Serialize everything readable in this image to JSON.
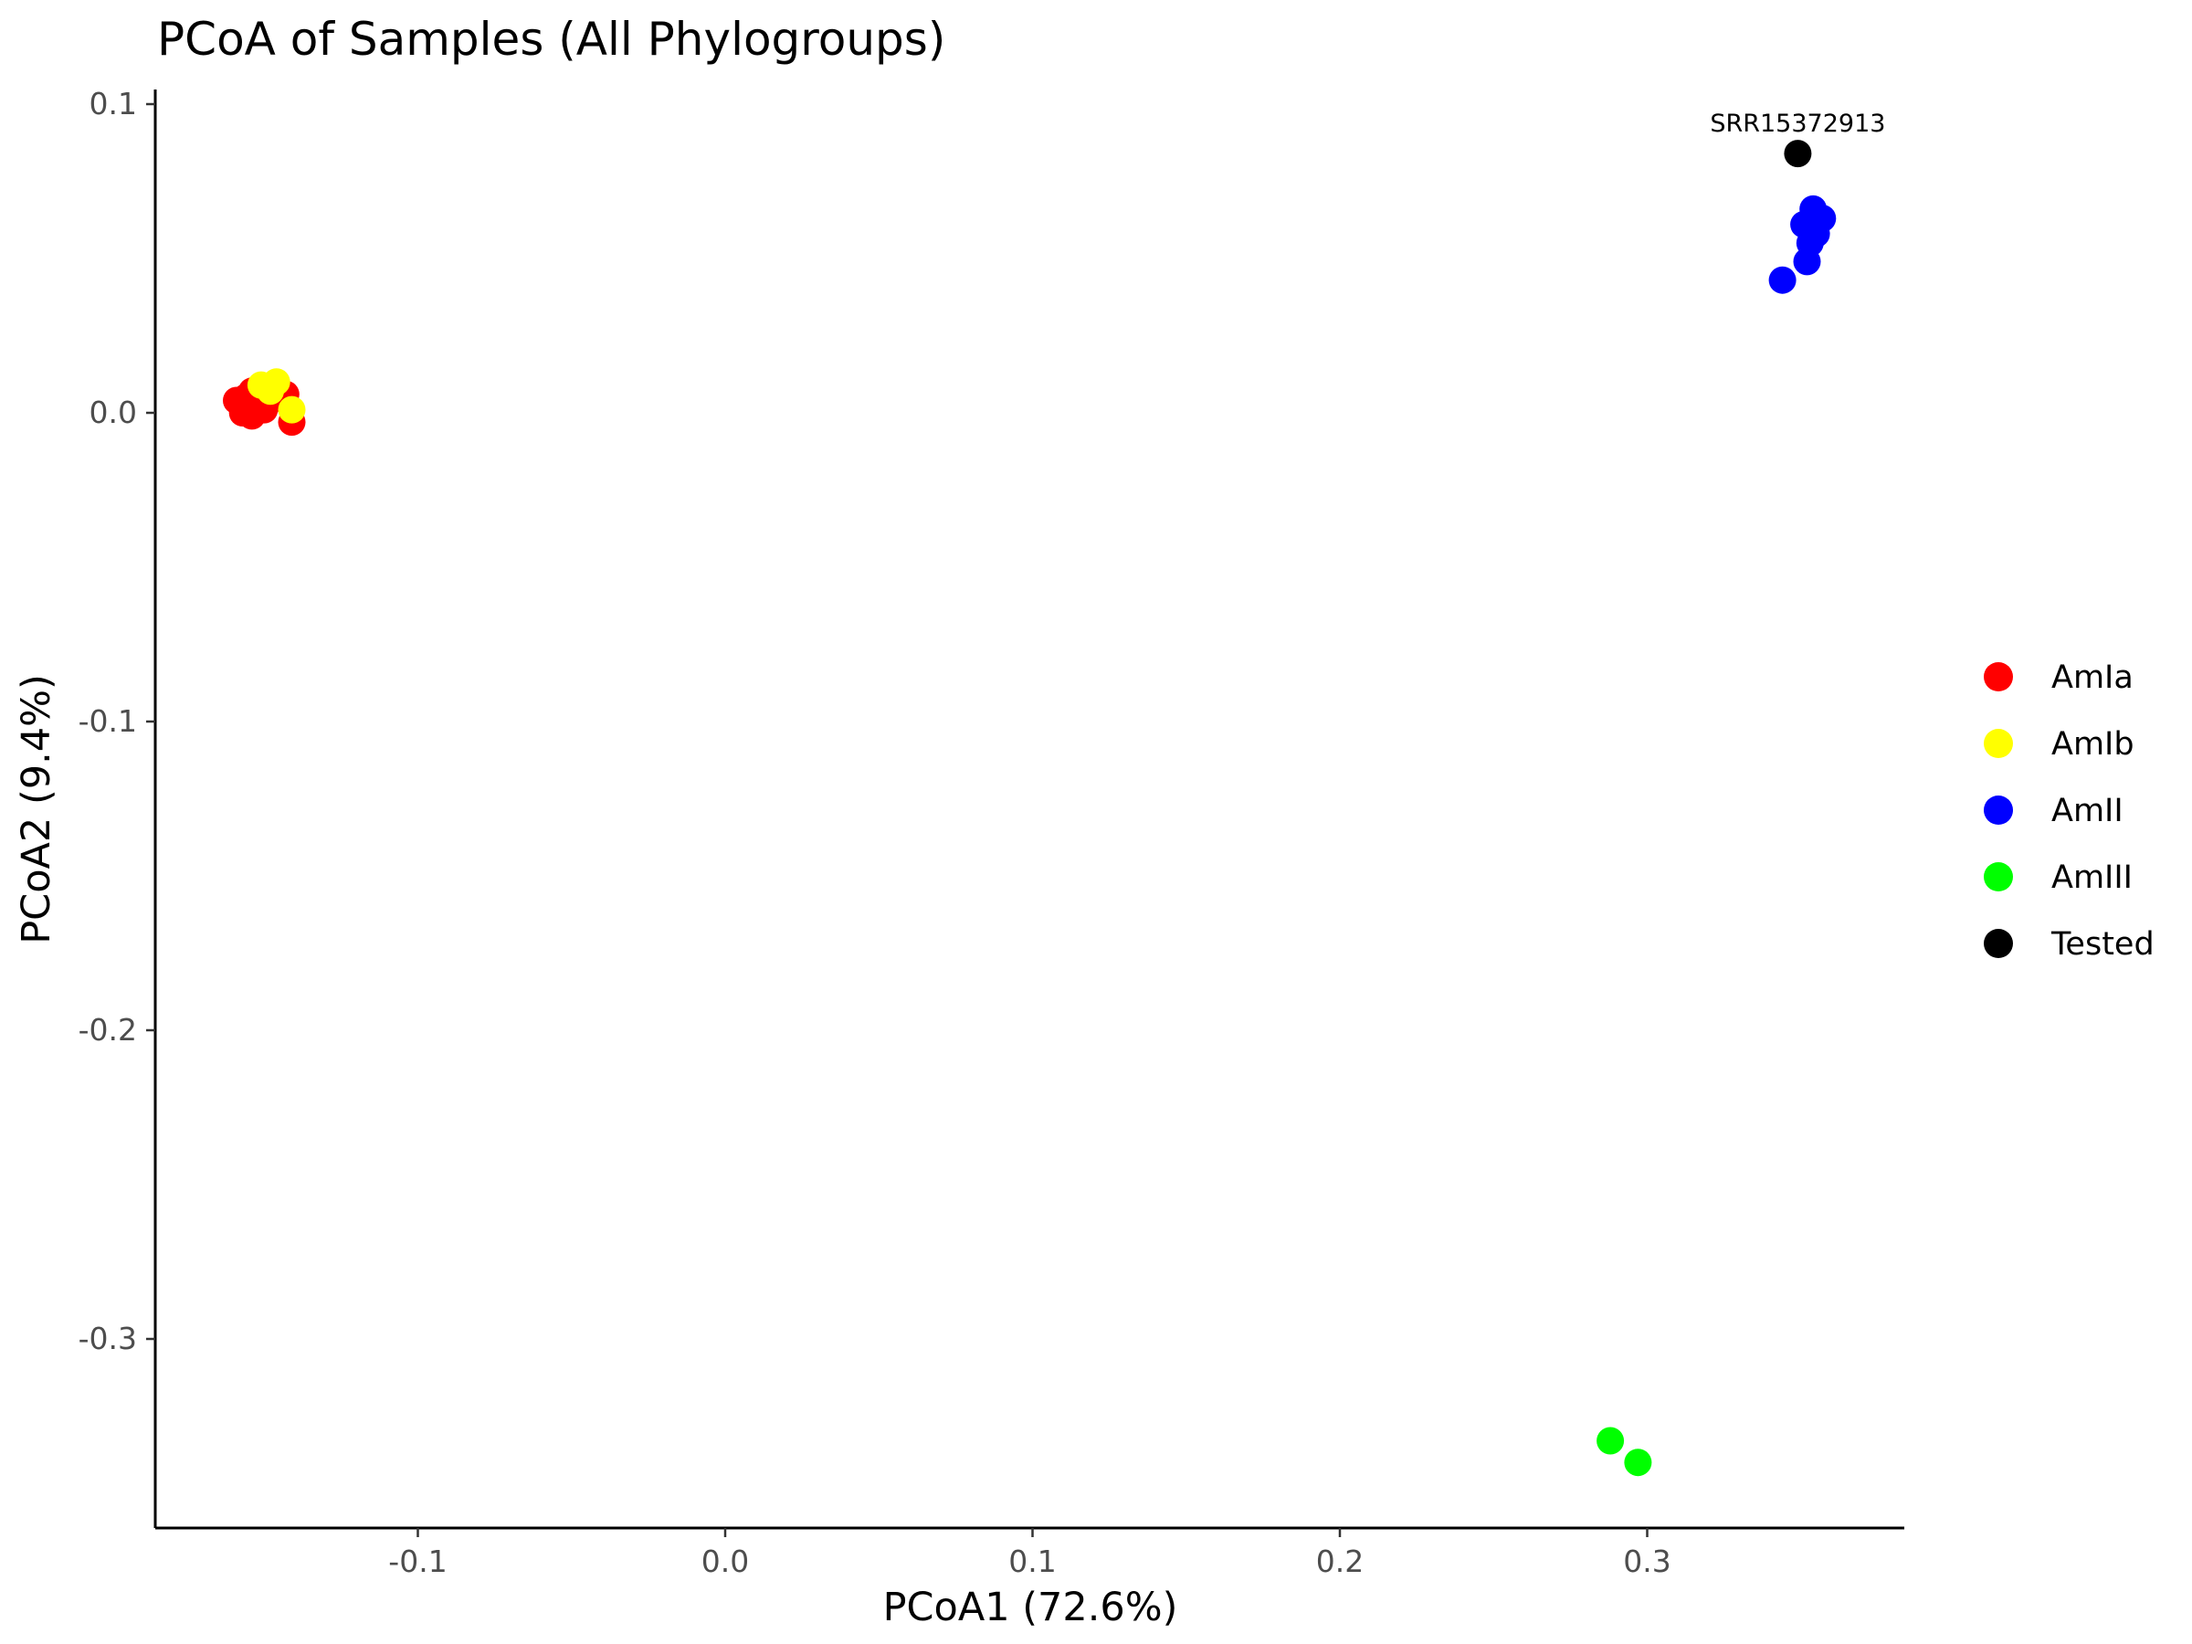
{
  "chart_data": {
    "type": "scatter",
    "title": "PCoA of Samples (All Phylogroups)",
    "xlabel": "PCoA1 (72.6%)",
    "ylabel": "PCoA2 (9.4%)",
    "xlim": [
      -0.185,
      0.385
    ],
    "ylim": [
      -0.36,
      0.105
    ],
    "x_ticks": [
      -0.1,
      0.0,
      0.1,
      0.2,
      0.3
    ],
    "x_tick_labels": [
      "-0.1",
      "0.0",
      "0.1",
      "0.2",
      "0.3"
    ],
    "y_ticks": [
      0.1,
      0.0,
      -0.1,
      -0.2,
      -0.3
    ],
    "y_tick_labels": [
      "0.1",
      "0.0",
      "-0.1",
      "-0.2",
      "-0.3"
    ],
    "grid": false,
    "legend_position": "right",
    "series": [
      {
        "name": "AmIa",
        "color": "#FF0000",
        "points": [
          {
            "x": -0.159,
            "y": 0.004
          },
          {
            "x": -0.156,
            "y": 0.005
          },
          {
            "x": -0.154,
            "y": 0.007
          },
          {
            "x": -0.152,
            "y": 0.003
          },
          {
            "x": -0.157,
            "y": 0.0
          },
          {
            "x": -0.154,
            "y": -0.001
          },
          {
            "x": -0.15,
            "y": 0.001
          },
          {
            "x": -0.149,
            "y": 0.003
          },
          {
            "x": -0.143,
            "y": 0.006
          },
          {
            "x": -0.141,
            "y": -0.003
          }
        ]
      },
      {
        "name": "AmIb",
        "color": "#FFFF00",
        "points": [
          {
            "x": -0.151,
            "y": 0.009
          },
          {
            "x": -0.146,
            "y": 0.01
          },
          {
            "x": -0.148,
            "y": 0.007
          },
          {
            "x": -0.141,
            "y": 0.001
          }
        ]
      },
      {
        "name": "AmII",
        "color": "#0000FF",
        "points": [
          {
            "x": 0.354,
            "y": 0.066
          },
          {
            "x": 0.351,
            "y": 0.061
          },
          {
            "x": 0.357,
            "y": 0.063
          },
          {
            "x": 0.355,
            "y": 0.058
          },
          {
            "x": 0.353,
            "y": 0.055
          },
          {
            "x": 0.352,
            "y": 0.049
          },
          {
            "x": 0.344,
            "y": 0.043
          }
        ]
      },
      {
        "name": "AmIII",
        "color": "#00FF00",
        "points": [
          {
            "x": 0.288,
            "y": -0.333
          },
          {
            "x": 0.297,
            "y": -0.34
          }
        ]
      },
      {
        "name": "Tested",
        "color": "#000000",
        "points": [
          {
            "x": 0.349,
            "y": 0.084
          }
        ]
      }
    ],
    "annotations": [
      {
        "text": "SRR15372913",
        "x": 0.349,
        "y": 0.084
      }
    ]
  }
}
